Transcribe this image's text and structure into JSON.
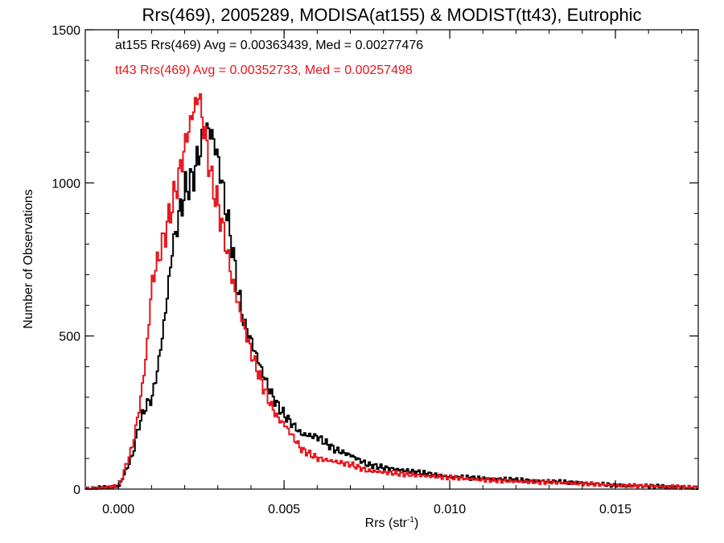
{
  "chart_data": {
    "type": "histogram",
    "title": "Rrs(469), 2005289, MODISA(at155) & MODIST(tt43), Eutrophic",
    "xlabel": "Rrs (str",
    "xlabel_sup": "-1",
    "xlabel_end": ")",
    "ylabel": "Number of Observations",
    "xlim": [
      -0.001,
      0.0175
    ],
    "ylim": [
      0,
      1500
    ],
    "xticks": [
      0.0,
      0.005,
      0.01,
      0.015
    ],
    "xtick_labels": [
      "0.000",
      "0.005",
      "0.010",
      "0.015"
    ],
    "yticks": [
      0,
      500,
      1000,
      1500
    ],
    "ytick_labels": [
      "0",
      "500",
      "1000",
      "1500"
    ],
    "grid": false,
    "legend_position": "top-left",
    "annotations": [
      {
        "text": "at155 Rrs(469) Avg = 0.00363439, Med = 0.00277476",
        "color": "#000000"
      },
      {
        "text": "tt43 Rrs(469) Avg = 0.00352733, Med = 0.00257498",
        "color": "#e8141b"
      }
    ],
    "series": [
      {
        "color": "#000000",
        "points": [
          [
            -0.001,
            0
          ],
          [
            0.0,
            10
          ],
          [
            0.0002,
            60
          ],
          [
            0.0004,
            110
          ],
          [
            0.0006,
            210
          ],
          [
            0.0008,
            270
          ],
          [
            0.001,
            300
          ],
          [
            0.0012,
            420
          ],
          [
            0.0014,
            580
          ],
          [
            0.0016,
            780
          ],
          [
            0.0018,
            890
          ],
          [
            0.002,
            980
          ],
          [
            0.0022,
            1010
          ],
          [
            0.0024,
            1090
          ],
          [
            0.0026,
            1180
          ],
          [
            0.0028,
            1160
          ],
          [
            0.003,
            1070
          ],
          [
            0.0032,
            930
          ],
          [
            0.0034,
            800
          ],
          [
            0.0036,
            640
          ],
          [
            0.0038,
            530
          ],
          [
            0.004,
            480
          ],
          [
            0.0042,
            420
          ],
          [
            0.0044,
            360
          ],
          [
            0.0046,
            310
          ],
          [
            0.0048,
            270
          ],
          [
            0.005,
            240
          ],
          [
            0.0055,
            180
          ],
          [
            0.006,
            170
          ],
          [
            0.0065,
            130
          ],
          [
            0.007,
            110
          ],
          [
            0.0075,
            80
          ],
          [
            0.008,
            70
          ],
          [
            0.009,
            55
          ],
          [
            0.01,
            40
          ],
          [
            0.011,
            35
          ],
          [
            0.012,
            30
          ],
          [
            0.013,
            25
          ],
          [
            0.014,
            20
          ],
          [
            0.015,
            12
          ],
          [
            0.016,
            10
          ],
          [
            0.0175,
            5
          ]
        ]
      },
      {
        "color": "#e8141b",
        "points": [
          [
            -0.001,
            0
          ],
          [
            0.0,
            10
          ],
          [
            0.0002,
            75
          ],
          [
            0.0004,
            140
          ],
          [
            0.0006,
            260
          ],
          [
            0.0008,
            420
          ],
          [
            0.001,
            680
          ],
          [
            0.0012,
            760
          ],
          [
            0.0014,
            840
          ],
          [
            0.0016,
            930
          ],
          [
            0.0018,
            1020
          ],
          [
            0.002,
            1130
          ],
          [
            0.0022,
            1220
          ],
          [
            0.0024,
            1290
          ],
          [
            0.0026,
            1150
          ],
          [
            0.0028,
            1000
          ],
          [
            0.003,
            920
          ],
          [
            0.0032,
            810
          ],
          [
            0.0034,
            690
          ],
          [
            0.0036,
            600
          ],
          [
            0.0038,
            520
          ],
          [
            0.004,
            440
          ],
          [
            0.0042,
            380
          ],
          [
            0.0044,
            320
          ],
          [
            0.0046,
            270
          ],
          [
            0.0048,
            230
          ],
          [
            0.005,
            210
          ],
          [
            0.0055,
            130
          ],
          [
            0.006,
            100
          ],
          [
            0.0065,
            90
          ],
          [
            0.007,
            80
          ],
          [
            0.0075,
            60
          ],
          [
            0.008,
            55
          ],
          [
            0.009,
            45
          ],
          [
            0.01,
            38
          ],
          [
            0.011,
            30
          ],
          [
            0.012,
            25
          ],
          [
            0.013,
            22
          ],
          [
            0.014,
            18
          ],
          [
            0.015,
            12
          ],
          [
            0.016,
            10
          ],
          [
            0.0175,
            5
          ]
        ]
      }
    ]
  }
}
